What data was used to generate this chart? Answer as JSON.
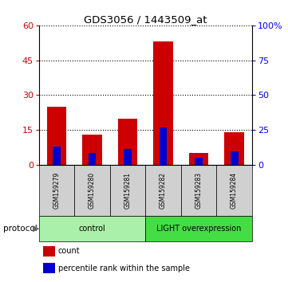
{
  "title": "GDS3056 / 1443509_at",
  "samples": [
    "GSM159279",
    "GSM159280",
    "GSM159281",
    "GSM159282",
    "GSM159283",
    "GSM159284"
  ],
  "count_values": [
    25,
    13,
    20,
    53,
    5,
    14
  ],
  "percentile_values": [
    8,
    5,
    7,
    16,
    3,
    6
  ],
  "groups": [
    {
      "label": "control",
      "start": 0,
      "end": 3,
      "color": "#aaf0aa"
    },
    {
      "label": "LIGHT overexpression",
      "start": 3,
      "end": 6,
      "color": "#44dd44"
    }
  ],
  "ylim_left": [
    0,
    60
  ],
  "ylim_right": [
    0,
    100
  ],
  "yticks_left": [
    0,
    15,
    30,
    45,
    60
  ],
  "yticks_right": [
    0,
    25,
    50,
    75,
    100
  ],
  "ytick_labels_right": [
    "0",
    "25",
    "50",
    "75",
    "100%"
  ],
  "bar_color_count": "#cc0000",
  "bar_color_percentile": "#0000cc",
  "bar_width": 0.55,
  "blue_bar_width": 0.22,
  "protocol_label": "protocol",
  "legend_count": "count",
  "legend_percentile": "percentile rank within the sample",
  "sample_cell_color": "#d0d0d0"
}
